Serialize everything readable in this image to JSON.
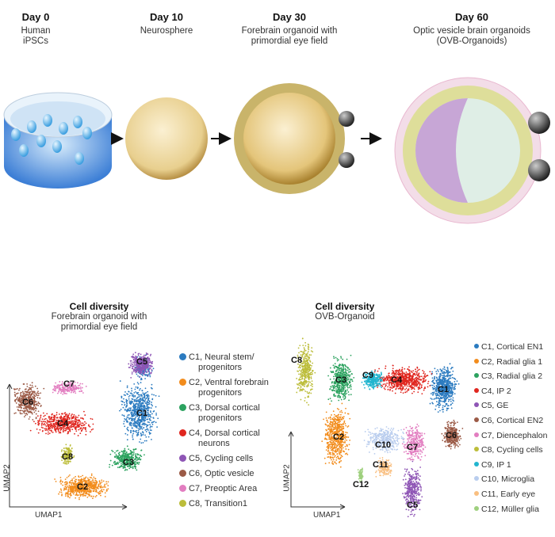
{
  "timeline": [
    {
      "day": "Day 0",
      "desc": [
        "Human",
        "iPSCs"
      ]
    },
    {
      "day": "Day 10",
      "desc": [
        "Neurosphere"
      ]
    },
    {
      "day": "Day 30",
      "desc": [
        "Forebrain organoid with",
        "primordial eye field"
      ]
    },
    {
      "day": "Day 60",
      "desc": [
        "Optic vesicle brain organoids",
        "(OVB-Organoids)"
      ]
    }
  ],
  "left_panel": {
    "title": "Cell diversity",
    "subtitle": [
      "Forebrain organoid with",
      "primordial eye field"
    ],
    "xlabel": "UMAP1",
    "ylabel": "UMAP2",
    "clusters": [
      {
        "id": "C1",
        "label": [
          "C1, Neural stem/",
          "progenitors"
        ],
        "color": "#2b7bc0"
      },
      {
        "id": "C2",
        "label": [
          "C2, Ventral forebrain",
          "progenitors"
        ],
        "color": "#f28c1c"
      },
      {
        "id": "C3",
        "label": [
          "C3, Dorsal cortical",
          "progenitors"
        ],
        "color": "#2ca25f"
      },
      {
        "id": "C4",
        "label": [
          "C4, Dorsal cortical",
          "neurons"
        ],
        "color": "#e0261f"
      },
      {
        "id": "C5",
        "label": [
          "C5, Cycling cells"
        ],
        "color": "#8e55b5"
      },
      {
        "id": "C6",
        "label": [
          "C6, Optic vesicle"
        ],
        "color": "#9b5a46"
      },
      {
        "id": "C7",
        "label": [
          "C7, Preoptic Area"
        ],
        "color": "#e27dc0"
      },
      {
        "id": "C8",
        "label": [
          "C8, Transition1"
        ],
        "color": "#bcbd3a"
      }
    ]
  },
  "right_panel": {
    "title": "Cell diversity",
    "subtitle": [
      "OVB-Organoid"
    ],
    "xlabel": "UMAP1",
    "ylabel": "UMAP2",
    "clusters": [
      {
        "id": "C1",
        "label": "C1, Cortical EN1",
        "color": "#2b7bc0"
      },
      {
        "id": "C2",
        "label": "C2, Radial glia 1",
        "color": "#f28c1c"
      },
      {
        "id": "C3",
        "label": "C3, Radial glia 2",
        "color": "#2ca25f"
      },
      {
        "id": "C4",
        "label": "C4, IP 2",
        "color": "#e0261f"
      },
      {
        "id": "C5",
        "label": "C5, GE",
        "color": "#8e55b5"
      },
      {
        "id": "C6",
        "label": "C6, Cortical EN2",
        "color": "#9b5a46"
      },
      {
        "id": "C7",
        "label": "C7, Diencephalon",
        "color": "#e27dc0"
      },
      {
        "id": "C8",
        "label": "C8, Cycling cells",
        "color": "#bcbd3a"
      },
      {
        "id": "C9",
        "label": "C9, IP 1",
        "color": "#22b5cf"
      },
      {
        "id": "C10",
        "label": "C10, Microglia",
        "color": "#b9cdee"
      },
      {
        "id": "C11",
        "label": "C11, Early eye",
        "color": "#f9bf80"
      },
      {
        "id": "C12",
        "label": "C12, Müller glia",
        "color": "#9fd07e"
      }
    ]
  }
}
